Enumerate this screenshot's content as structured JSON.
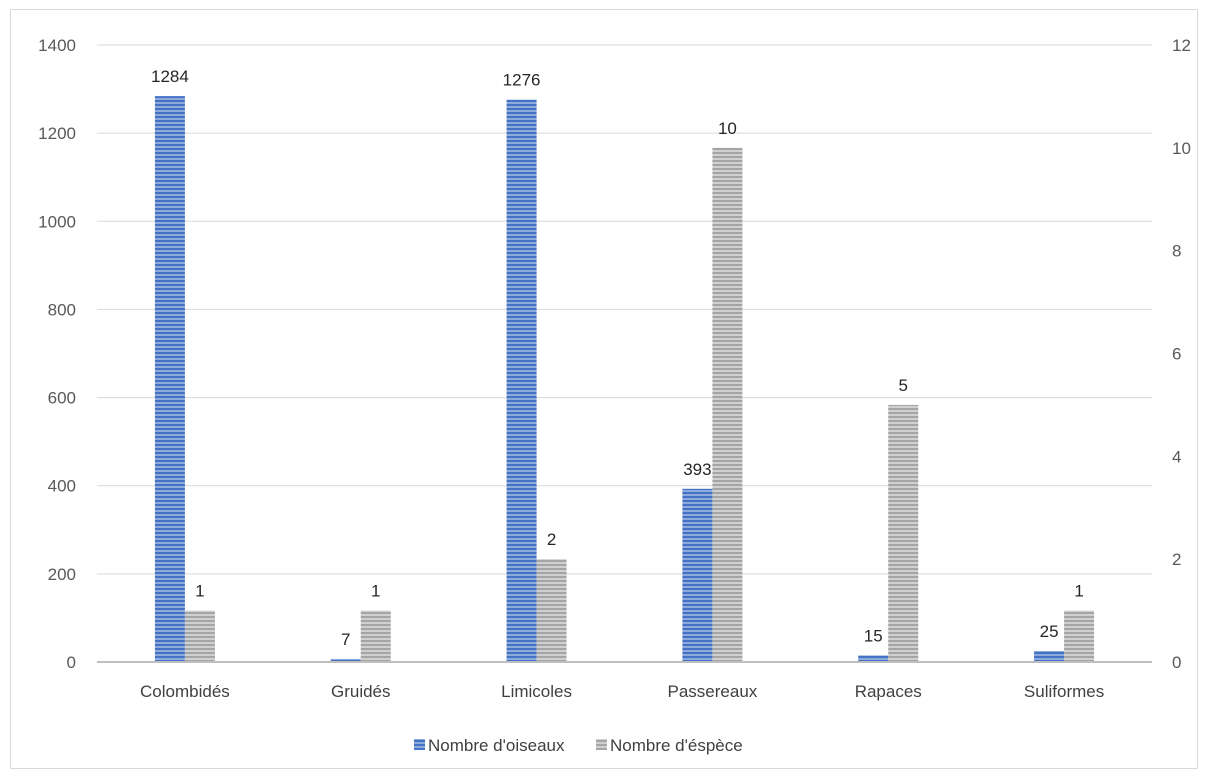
{
  "chart_data": {
    "type": "bar",
    "categories": [
      "Colombidés",
      "Gruidés",
      "Limicoles",
      "Passereaux",
      "Rapaces",
      "Suliformes"
    ],
    "series": [
      {
        "name": "Nombre d'oiseaux",
        "axis": "left",
        "values": [
          1284,
          7,
          1276,
          393,
          15,
          25
        ],
        "color": "#4472c4"
      },
      {
        "name": "Nombre d'éspèce",
        "axis": "right",
        "values": [
          1,
          1,
          2,
          10,
          5,
          1
        ],
        "color": "#a5a5a5"
      }
    ],
    "y_left": {
      "ylim": [
        0,
        1400
      ],
      "ticks": [
        "0",
        "200",
        "400",
        "600",
        "800",
        "1000",
        "1200",
        "1400"
      ]
    },
    "y_right": {
      "ylim": [
        0,
        12
      ],
      "ticks": [
        "0",
        "2",
        "4",
        "6",
        "8",
        "10",
        "12"
      ]
    },
    "grid": true,
    "legend": "bottom",
    "title": "",
    "xlabel": "",
    "ylabel": ""
  }
}
